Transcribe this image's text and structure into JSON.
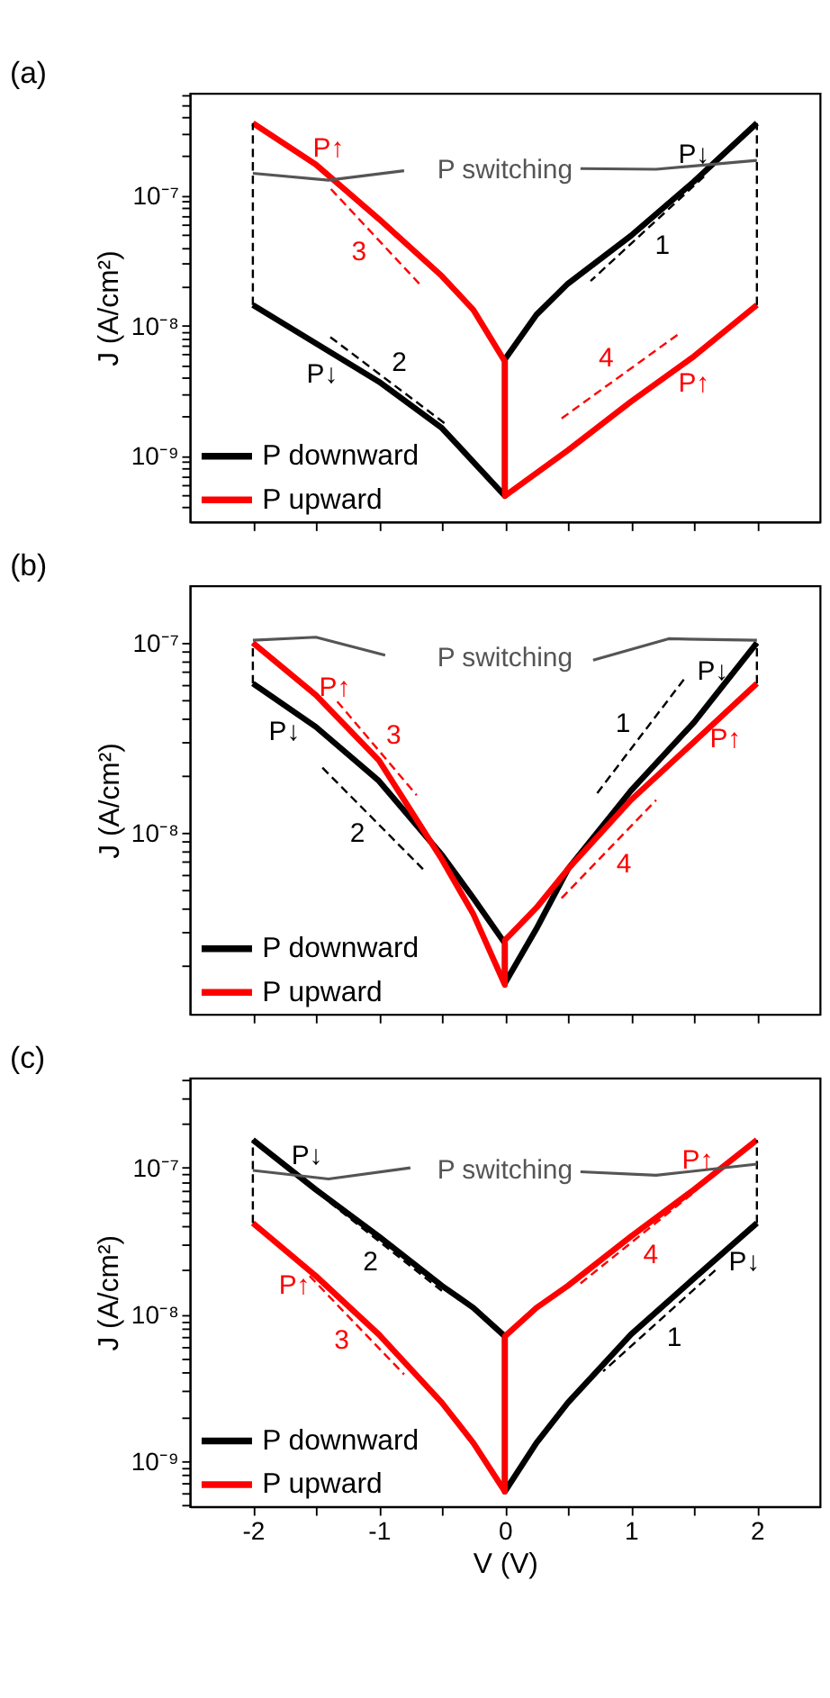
{
  "chart_data": [
    {
      "type": "line",
      "title": "(a)",
      "ylabel": "J (A/cm²)",
      "log": "y",
      "grid": false,
      "legend": "bottom left",
      "tick_labels": "y",
      "xlim": [
        -2.5,
        2.5
      ],
      "xticks": [
        -2,
        {
          "value": -1.5,
          "label": null
        },
        -1,
        {
          "value": -0.5,
          "label": null
        },
        0,
        {
          "value": 0.5,
          "label": null
        },
        1,
        {
          "value": 1.5,
          "label": null
        },
        2
      ],
      "ylim": [
        3.1e-10,
        6.1e-07
      ],
      "yticks": [
        {
          "value": 4e-10,
          "label": null
        },
        {
          "value": 5e-10,
          "label": null
        },
        {
          "value": 6e-10,
          "label": null
        },
        {
          "value": 7e-10,
          "label": null
        },
        {
          "value": 8e-10,
          "label": null
        },
        {
          "value": 9e-10,
          "label": null
        },
        {
          "value": 1e-09,
          "label": "10⁻⁹"
        },
        {
          "value": 2e-09,
          "label": null
        },
        {
          "value": 3e-09,
          "label": null
        },
        {
          "value": 4e-09,
          "label": null
        },
        {
          "value": 5e-09,
          "label": null
        },
        {
          "value": 6e-09,
          "label": null
        },
        {
          "value": 7e-09,
          "label": null
        },
        {
          "value": 8e-09,
          "label": null
        },
        {
          "value": 9e-09,
          "label": null
        },
        {
          "value": 1e-08,
          "label": "10⁻⁸"
        },
        {
          "value": 2e-08,
          "label": null
        },
        {
          "value": 3e-08,
          "label": null
        },
        {
          "value": 4e-08,
          "label": null
        },
        {
          "value": 5e-08,
          "label": null
        },
        {
          "value": 6e-08,
          "label": null
        },
        {
          "value": 7e-08,
          "label": null
        },
        {
          "value": 8e-08,
          "label": null
        },
        {
          "value": 9e-08,
          "label": null
        },
        {
          "value": 1e-07,
          "label": "10⁻⁷"
        },
        {
          "value": 2e-07,
          "label": null
        },
        {
          "value": 3e-07,
          "label": null
        },
        {
          "value": 4e-07,
          "label": null
        },
        {
          "value": 5e-07,
          "label": null
        },
        {
          "value": 6e-07,
          "label": null
        }
      ],
      "series": [
        {
          "name": "P downward",
          "color": "#000000",
          "line_style": "solid",
          "x": [
            -2,
            -1,
            -0.5,
            0,
            0,
            0.25,
            0.5,
            1,
            1.5,
            2
          ],
          "values": [
            1.44e-08,
            3.7e-09,
            1.63e-09,
            4.9e-10,
            5.5e-09,
            1.21e-08,
            2.1e-08,
            4.9e-08,
            1.28e-07,
            3.6e-07
          ]
        },
        {
          "name": "P upward",
          "color": "#ff0000",
          "line_style": "solid",
          "x": [
            -2,
            -1.5,
            -1,
            -0.5,
            -0.25,
            0,
            0,
            0.5,
            1,
            1.5,
            2
          ],
          "values": [
            3.6e-07,
            1.73e-07,
            6.6e-08,
            2.4e-08,
            1.32e-08,
            5.3e-09,
            4.9e-10,
            1.1e-09,
            2.6e-09,
            5.8e-09,
            1.44e-08
          ]
        },
        {
          "name": "1",
          "color": "#000000",
          "line_style": "dashed",
          "x": [
            1.58,
            0.68
          ],
          "values": [
            1.4e-07,
            2.2e-08
          ]
        },
        {
          "name": "2",
          "color": "#000000",
          "line_style": "dashed",
          "x": [
            -0.48,
            -1.41
          ],
          "values": [
            1.78e-09,
            8.5e-09
          ]
        },
        {
          "name": "3",
          "color": "#ff0000",
          "line_style": "dashed",
          "x": [
            -1.38,
            -0.67
          ],
          "values": [
            1.12e-07,
            2.05e-08
          ]
        },
        {
          "name": "4",
          "color": "#ff0000",
          "line_style": "dashed",
          "x": [
            0.45,
            1.37
          ],
          "values": [
            1.93e-09,
            8.5e-09
          ]
        },
        {
          "color": "#000000",
          "line_style": "dashed",
          "x": [
            -2,
            -2
          ],
          "values": [
            1.44e-08,
            3.6e-07
          ]
        },
        {
          "color": "#000000",
          "line_style": "dashed",
          "x": [
            2,
            2
          ],
          "values": [
            1.44e-08,
            3.6e-07
          ]
        },
        {
          "name": "P switching",
          "color": "#555555",
          "line_style": "solid",
          "x": [
            -2,
            -1.4,
            -0.8,
            0,
            0.6,
            1.2,
            2
          ],
          "values": [
            1.48e-07,
            1.31e-07,
            1.55e-07,
            null,
            1.61e-07,
            1.59e-07,
            1.86e-07
          ]
        }
      ],
      "annotations": [
        {
          "text": "P↑",
          "x": -1.4,
          "y": 1.43e-07
        },
        {
          "text": "P↓",
          "x": 1.5,
          "y": 1.28e-07
        },
        {
          "text": "P↓",
          "x": -1.45,
          "y": 6.8e-09
        },
        {
          "text": "P↑",
          "x": 1.5,
          "y": 5.8e-09
        }
      ]
    },
    {
      "type": "line",
      "title": "(b)",
      "ylabel": "J (A/cm²)",
      "log": "y",
      "grid": false,
      "legend": "bottom left",
      "tick_labels": "y",
      "xlim": [
        -2.5,
        2.5
      ],
      "xticks": [
        -2,
        {
          "value": -1.5,
          "label": null
        },
        -1,
        {
          "value": -0.5,
          "label": null
        },
        0,
        {
          "value": 0.5,
          "label": null
        },
        1,
        {
          "value": 1.5,
          "label": null
        },
        2
      ],
      "ylim": [
        1.1e-09,
        2e-07
      ],
      "yticks": [
        {
          "value": 2e-09,
          "label": null
        },
        {
          "value": 3e-09,
          "label": null
        },
        {
          "value": 4e-09,
          "label": null
        },
        {
          "value": 5e-09,
          "label": null
        },
        {
          "value": 6e-09,
          "label": null
        },
        {
          "value": 7e-09,
          "label": null
        },
        {
          "value": 8e-09,
          "label": null
        },
        {
          "value": 9e-09,
          "label": null
        },
        {
          "value": 1e-08,
          "label": "10⁻⁸"
        },
        {
          "value": 2e-08,
          "label": null
        },
        {
          "value": 3e-08,
          "label": null
        },
        {
          "value": 4e-08,
          "label": null
        },
        {
          "value": 5e-08,
          "label": null
        },
        {
          "value": 6e-08,
          "label": null
        },
        {
          "value": 7e-08,
          "label": null
        },
        {
          "value": 8e-08,
          "label": null
        },
        {
          "value": 9e-08,
          "label": null
        },
        {
          "value": 1e-07,
          "label": "10⁻⁷"
        }
      ],
      "series": [
        {
          "name": "P downward",
          "color": "#000000",
          "line_style": "solid",
          "x": [
            -2,
            -1.5,
            -1,
            -0.5,
            -0.25,
            0,
            0,
            0.25,
            0.5,
            1,
            1.5,
            2
          ],
          "values": [
            6.1e-08,
            3.6e-08,
            1.87e-08,
            7.6e-09,
            4.5e-09,
            2.6e-09,
            1.6e-09,
            3.1e-09,
            6.4e-09,
            1.66e-08,
            3.8e-08,
            1e-07
          ]
        },
        {
          "name": "P upward",
          "color": "#ff0000",
          "line_style": "solid",
          "x": [
            -2,
            -1.5,
            -1,
            -0.5,
            -0.25,
            0,
            0,
            0.25,
            0.5,
            1,
            1.5,
            2
          ],
          "values": [
            1e-07,
            5.3e-08,
            2.4e-08,
            7.2e-09,
            3.7e-09,
            1.57e-09,
            2.7e-09,
            4e-09,
            6.4e-09,
            1.48e-08,
            3e-08,
            6.1e-08
          ]
        },
        {
          "name": "1",
          "color": "#000000",
          "line_style": "dashed",
          "x": [
            1.42,
            0.72
          ],
          "values": [
            6.4e-08,
            1.57e-08
          ]
        },
        {
          "name": "2",
          "color": "#000000",
          "line_style": "dashed",
          "x": [
            -0.65,
            -1.45
          ],
          "values": [
            6.4e-09,
            2.2e-08
          ]
        },
        {
          "name": "3",
          "color": "#ff0000",
          "line_style": "dashed",
          "x": [
            -1.33,
            -0.7
          ],
          "values": [
            4.9e-08,
            1.57e-08
          ]
        },
        {
          "name": "4",
          "color": "#ff0000",
          "line_style": "dashed",
          "x": [
            0.45,
            1.2
          ],
          "values": [
            4.5e-09,
            1.48e-08
          ]
        },
        {
          "color": "#000000",
          "line_style": "dashed",
          "x": [
            -2,
            -2
          ],
          "values": [
            6.1e-08,
            1e-07
          ]
        },
        {
          "color": "#000000",
          "line_style": "dashed",
          "x": [
            2,
            2
          ],
          "values": [
            6.1e-08,
            1e-07
          ]
        },
        {
          "name": "P switching",
          "color": "#555555",
          "line_style": "solid",
          "x": [
            -2,
            -1.5,
            -0.95,
            0,
            0.7,
            1.3,
            2
          ],
          "values": [
            1.03e-07,
            1.07e-07,
            8.6e-08,
            null,
            8.1e-08,
            1.05e-07,
            1.03e-07
          ]
        }
      ],
      "annotations": [
        {
          "text": "P↑",
          "x": -1.35,
          "y": 4.2e-08
        },
        {
          "text": "P↓",
          "x": 1.65,
          "y": 5.1e-08
        },
        {
          "text": "P↓",
          "x": -1.75,
          "y": 4.7e-08
        },
        {
          "text": "P↑",
          "x": 1.75,
          "y": 4.3e-08
        }
      ]
    },
    {
      "type": "line",
      "title": "(c)",
      "xlabel": "V (V)",
      "ylabel": "J (A/cm²)",
      "log": "y",
      "grid": false,
      "legend": "bottom left",
      "xlim": [
        -2.5,
        2.5
      ],
      "xticks": [
        -2,
        {
          "value": -1.5,
          "label": null
        },
        -1,
        {
          "value": -0.5,
          "label": null
        },
        0,
        {
          "value": 0.5,
          "label": null
        },
        1,
        {
          "value": 1.5,
          "label": null
        },
        2
      ],
      "ylim": [
        4.9e-10,
        4.1e-07
      ],
      "yticks": [
        {
          "value": 5e-10,
          "label": null
        },
        {
          "value": 6e-10,
          "label": null
        },
        {
          "value": 7e-10,
          "label": null
        },
        {
          "value": 8e-10,
          "label": null
        },
        {
          "value": 9e-10,
          "label": null
        },
        {
          "value": 1e-09,
          "label": "10⁻⁹"
        },
        {
          "value": 2e-09,
          "label": null
        },
        {
          "value": 3e-09,
          "label": null
        },
        {
          "value": 4e-09,
          "label": null
        },
        {
          "value": 5e-09,
          "label": null
        },
        {
          "value": 6e-09,
          "label": null
        },
        {
          "value": 7e-09,
          "label": null
        },
        {
          "value": 8e-09,
          "label": null
        },
        {
          "value": 9e-09,
          "label": null
        },
        {
          "value": 1e-08,
          "label": "10⁻⁸"
        },
        {
          "value": 2e-08,
          "label": null
        },
        {
          "value": 3e-08,
          "label": null
        },
        {
          "value": 4e-08,
          "label": null
        },
        {
          "value": 5e-08,
          "label": null
        },
        {
          "value": 6e-08,
          "label": null
        },
        {
          "value": 7e-08,
          "label": null
        },
        {
          "value": 8e-08,
          "label": null
        },
        {
          "value": 9e-08,
          "label": null
        },
        {
          "value": 1e-07,
          "label": "10⁻⁷"
        },
        {
          "value": 2e-07,
          "label": null
        },
        {
          "value": 3e-07,
          "label": null
        },
        {
          "value": 4e-07,
          "label": null
        }
      ],
      "series": [
        {
          "name": "P downward",
          "color": "#000000",
          "line_style": "solid",
          "x": [
            -2,
            -1.5,
            -1,
            -0.5,
            -0.25,
            0,
            0,
            0.25,
            0.5,
            1,
            1.5,
            2
          ],
          "values": [
            1.55e-07,
            7.1e-08,
            3.4e-08,
            1.57e-08,
            1.11e-08,
            7.1e-09,
            6.2e-10,
            1.33e-09,
            2.5e-09,
            7.3e-09,
            1.76e-08,
            4.2e-08
          ]
        },
        {
          "name": "P upward",
          "color": "#ff0000",
          "line_style": "solid",
          "x": [
            -2,
            -1.5,
            -1,
            -0.5,
            -0.25,
            0,
            0,
            0.25,
            0.5,
            1,
            1.5,
            2
          ],
          "values": [
            4.2e-08,
            1.83e-08,
            7.3e-09,
            2.5e-09,
            1.33e-09,
            6.2e-10,
            7.1e-09,
            1.11e-08,
            1.57e-08,
            3.4e-08,
            7.1e-08,
            1.55e-07
          ]
        },
        {
          "name": "1",
          "color": "#000000",
          "line_style": "dashed",
          "x": [
            1.67,
            0.78
          ],
          "values": [
            2e-08,
            4.1e-09
          ]
        },
        {
          "name": "2",
          "color": "#000000",
          "line_style": "dashed",
          "x": [
            -0.5,
            -1.42
          ],
          "values": [
            1.45e-08,
            6.1e-08
          ]
        },
        {
          "name": "3",
          "color": "#ff0000",
          "line_style": "dashed",
          "x": [
            -1.55,
            -0.8
          ],
          "values": [
            1.83e-08,
            3.9e-09
          ]
        },
        {
          "name": "4",
          "color": "#ff0000",
          "line_style": "dashed",
          "x": [
            0.6,
            1.5
          ],
          "values": [
            1.63e-08,
            6.8e-08
          ]
        },
        {
          "color": "#000000",
          "line_style": "dashed",
          "x": [
            -2,
            -2
          ],
          "values": [
            4.2e-08,
            1.55e-07
          ]
        },
        {
          "color": "#000000",
          "line_style": "dashed",
          "x": [
            2,
            2
          ],
          "values": [
            4.2e-08,
            1.55e-07
          ]
        },
        {
          "name": "P switching",
          "color": "#555555",
          "line_style": "solid",
          "x": [
            -2,
            -1.4,
            -0.75,
            0,
            0.6,
            1.2,
            2
          ],
          "values": [
            9.6e-08,
            8.4e-08,
            1e-07,
            null,
            9.4e-08,
            8.9e-08,
            1.06e-07
          ]
        }
      ],
      "annotations": [
        {
          "text": "P↓",
          "x": -1.57,
          "y": 7.9e-08
        },
        {
          "text": "P↑",
          "x": 1.53,
          "y": 7.4e-08
        },
        {
          "text": "P↑",
          "x": -1.67,
          "y": 2.4e-08
        },
        {
          "text": "P↓",
          "x": 1.9,
          "y": 3.5e-08
        }
      ]
    }
  ]
}
